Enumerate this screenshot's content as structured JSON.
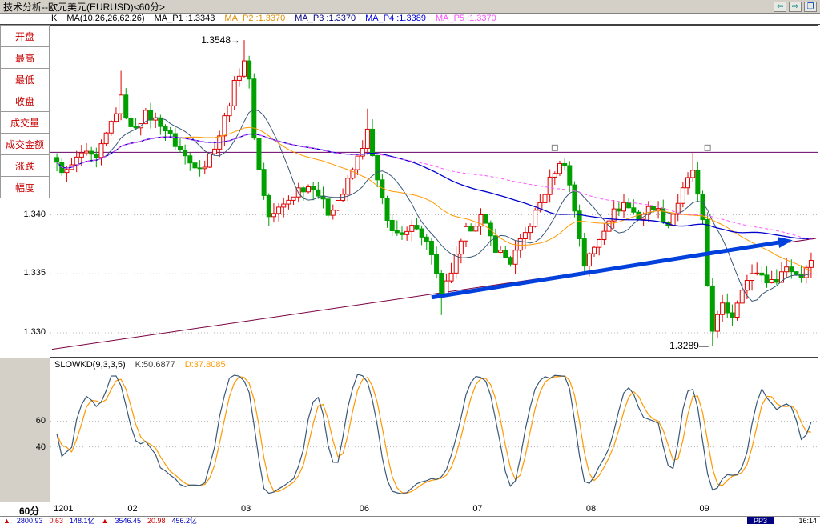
{
  "titlebar": {
    "title": "技术分析--欧元美元(EURUSD)<60分>",
    "buttons": [
      {
        "name": "prev",
        "glyph": "⇦",
        "color": "#008080"
      },
      {
        "name": "next",
        "glyph": "⇨",
        "color": "#008080"
      },
      {
        "name": "restore",
        "glyph": "❐",
        "color": "#0048c0"
      }
    ]
  },
  "ma_header": {
    "items": [
      {
        "text": "K",
        "color": "#000000"
      },
      {
        "text": "MA(10,26,26,62,26)",
        "color": "#000000"
      },
      {
        "text": "MA_P1 :1.3343",
        "color": "#000000"
      },
      {
        "text": "MA_P2 :1.3370",
        "color": "#e09000"
      },
      {
        "text": "MA_P3 :1.3370",
        "color": "#000080"
      },
      {
        "text": "MA_P4 :1.3389",
        "color": "#0000e0"
      },
      {
        "text": "MA_P5 :1.3370",
        "color": "#ff50ff"
      }
    ]
  },
  "sidebar": {
    "buttons": [
      "开盘",
      "最高",
      "最低",
      "收盘",
      "成交量",
      "成交金额",
      "涨跌",
      "幅度"
    ]
  },
  "xaxis": {
    "period_label": "60分",
    "ticks": [
      "1201",
      "02",
      "03",
      "06",
      "07",
      "08",
      "09"
    ]
  },
  "chart_data": {
    "type": "candlestick",
    "title": "欧元美元 EURUSD 60分",
    "bars": 154,
    "ylim": [
      1.3279,
      1.3561
    ],
    "yticks": [
      1.34,
      1.335,
      1.33
    ],
    "ytick_labels": [
      "1.340",
      "1.335",
      "1.330"
    ],
    "day_start_bars": [
      0,
      15,
      38,
      62,
      85,
      108,
      131
    ],
    "close_waypoints": [
      [
        0,
        1.3442
      ],
      [
        2,
        1.3436
      ],
      [
        5,
        1.3452
      ],
      [
        8,
        1.3446
      ],
      [
        11,
        1.3478
      ],
      [
        13,
        1.3498
      ],
      [
        15,
        1.3472
      ],
      [
        18,
        1.3485
      ],
      [
        21,
        1.3478
      ],
      [
        24,
        1.346
      ],
      [
        27,
        1.3444
      ],
      [
        30,
        1.3442
      ],
      [
        33,
        1.3468
      ],
      [
        36,
        1.351
      ],
      [
        38,
        1.3532
      ],
      [
        39,
        1.3512
      ],
      [
        40,
        1.3468
      ],
      [
        41,
        1.3438
      ],
      [
        43,
        1.3398
      ],
      [
        46,
        1.3408
      ],
      [
        49,
        1.3422
      ],
      [
        52,
        1.3425
      ],
      [
        55,
        1.3402
      ],
      [
        58,
        1.3418
      ],
      [
        61,
        1.3448
      ],
      [
        63,
        1.347
      ],
      [
        65,
        1.3428
      ],
      [
        67,
        1.3394
      ],
      [
        70,
        1.338
      ],
      [
        73,
        1.3392
      ],
      [
        76,
        1.3368
      ],
      [
        78,
        1.333
      ],
      [
        80,
        1.3352
      ],
      [
        83,
        1.3386
      ],
      [
        86,
        1.3398
      ],
      [
        89,
        1.3372
      ],
      [
        92,
        1.336
      ],
      [
        95,
        1.3384
      ],
      [
        98,
        1.341
      ],
      [
        101,
        1.3438
      ],
      [
        103,
        1.3445
      ],
      [
        105,
        1.3404
      ],
      [
        107,
        1.3358
      ],
      [
        109,
        1.3372
      ],
      [
        112,
        1.3398
      ],
      [
        115,
        1.341
      ],
      [
        118,
        1.3398
      ],
      [
        121,
        1.3408
      ],
      [
        124,
        1.3392
      ],
      [
        127,
        1.342
      ],
      [
        129,
        1.3438
      ],
      [
        131,
        1.3392
      ],
      [
        132,
        1.334
      ],
      [
        133,
        1.3304
      ],
      [
        135,
        1.3322
      ],
      [
        137,
        1.3315
      ],
      [
        139,
        1.334
      ],
      [
        142,
        1.3352
      ],
      [
        145,
        1.3342
      ],
      [
        148,
        1.3356
      ],
      [
        151,
        1.3348
      ],
      [
        153,
        1.3365
      ]
    ],
    "noise": 0.0008,
    "wick": 0.0009,
    "extremes": [
      {
        "bar": 13,
        "high": 1.3522
      },
      {
        "bar": 38,
        "high": 1.3548
      },
      {
        "bar": 63,
        "high": 1.349
      },
      {
        "bar": 78,
        "low": 1.3315
      },
      {
        "bar": 129,
        "high": 1.3453
      },
      {
        "bar": 133,
        "low": 1.3289
      }
    ],
    "ma_lines": [
      {
        "name": "MA10",
        "period": 10,
        "color": "#3a5878",
        "width": 1,
        "dash": ""
      },
      {
        "name": "MA26",
        "period": 26,
        "color": "#ff9900",
        "width": 1,
        "dash": ""
      },
      {
        "name": "MA62",
        "period": 62,
        "color": "#0000cc",
        "width": 1.3,
        "dash": ""
      },
      {
        "name": "MA88",
        "period": 88,
        "color": "#ff55ff",
        "width": 1,
        "dash": "4,3"
      }
    ],
    "hline": {
      "price": 1.3453,
      "color": "#6a006a",
      "marker_bars": [
        101,
        132
      ]
    },
    "trendline": {
      "from": [
        0,
        1.3286
      ],
      "to": [
        154,
        1.338
      ],
      "color": "#7a0040"
    },
    "arrow": {
      "from_bar": 76,
      "from_price": 1.333,
      "to_bar": 147,
      "to_price": 1.3377,
      "color": "#0040dd",
      "width": 5
    },
    "annotations": [
      {
        "text": "1.3548→",
        "bar": 38,
        "price": 1.3548,
        "anchor": "end"
      },
      {
        "text": "1.3289—",
        "bar": 133,
        "price": 1.3289,
        "anchor": "end"
      }
    ],
    "colors": {
      "up": "#e00000",
      "down": "#00a000",
      "grid": "#b8b8b8"
    }
  },
  "kd_panel": {
    "type": "line",
    "header": [
      {
        "text": "SLOWKD(9,3,3,5)",
        "color": "#000000"
      },
      {
        "text": "K:50.6877",
        "color": "#404040"
      },
      {
        "text": "D:37.8085",
        "color": "#ff9900"
      }
    ],
    "params": {
      "n": 9,
      "k_smooth": 3,
      "d_smooth": 3
    },
    "yticks": [
      60,
      40
    ],
    "k_color": "#3a5878",
    "d_color": "#ff9900"
  },
  "statusbar": {
    "items": [
      {
        "text": "▲",
        "color": "#cc0000"
      },
      {
        "text": "2800.93",
        "color": "#0000bb"
      },
      {
        "text": "0.63",
        "color": "#cc0000"
      },
      {
        "text": "148.1亿",
        "color": "#0000bb"
      },
      {
        "text": "▲",
        "color": "#cc0000"
      },
      {
        "text": "3546.45",
        "color": "#0000bb"
      },
      {
        "text": "20.98",
        "color": "#cc0000"
      },
      {
        "text": "456.2亿",
        "color": "#0000bb"
      }
    ],
    "chip": {
      "text": "PP3",
      "bg": "#000080",
      "color": "#ffffff"
    },
    "time": "16:14"
  }
}
